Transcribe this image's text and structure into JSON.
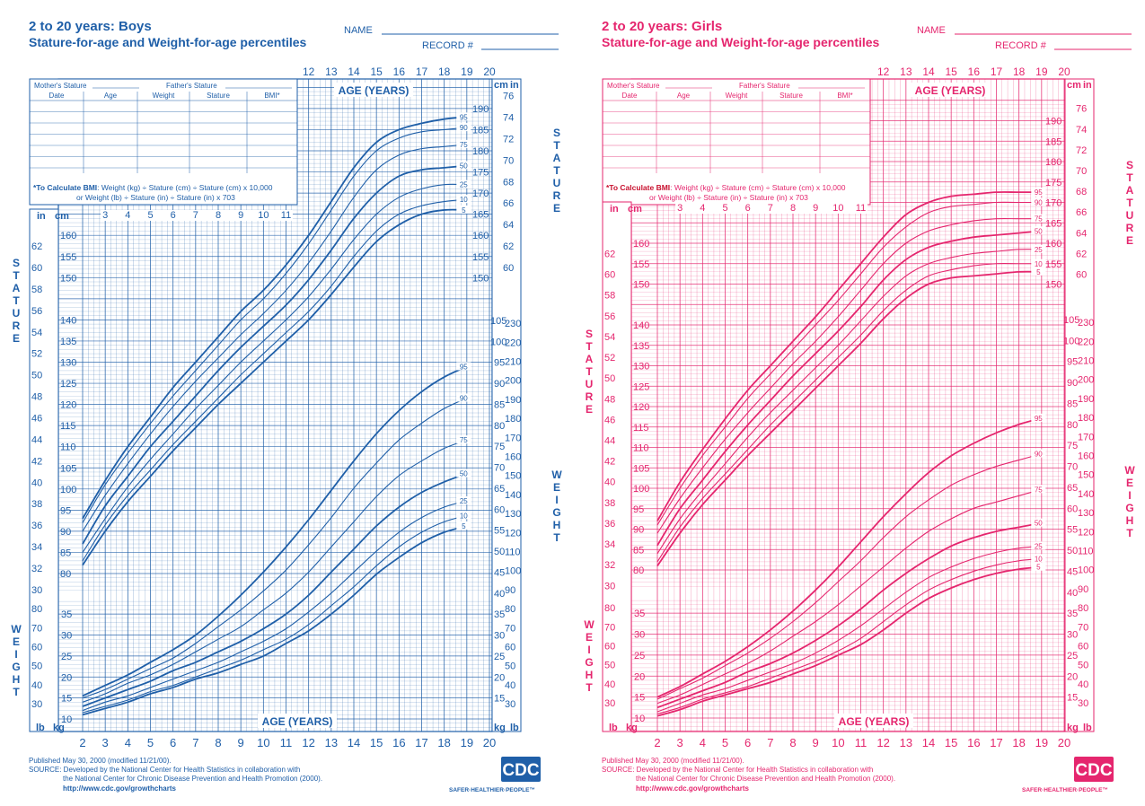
{
  "boys": {
    "title": "2 to 20 years: Boys",
    "subtitle": "Stature-for-age and Weight-for-age percentiles",
    "name_label": "NAME",
    "record_label": "RECORD #",
    "color": "#1f5fa8",
    "table": {
      "mother_label": "Mother's Stature",
      "father_label": "Father's Stature",
      "columns": [
        "Date",
        "Age",
        "Weight",
        "Stature",
        "BMI*"
      ]
    },
    "bmi_note_bold": "*To Calculate BMI",
    "bmi_note_line1": ": Weight (kg) ÷ Stature (cm) ÷ Stature (cm) x 10,000",
    "bmi_note_line2": "or Weight (lb) ÷ Stature (in) ÷ Stature (in) x 703",
    "age_label": "AGE (YEARS)",
    "stature_label": "STATURE",
    "weight_label": "WEIGHT",
    "unit_in": "in",
    "unit_cm": "cm",
    "unit_lb": "lb",
    "unit_kg": "kg",
    "footer_line1": "Published May 30, 2000 (modified 11/21/00).",
    "footer_line2": "SOURCE: Developed by the National Center for Health Statistics in collaboration with",
    "footer_line3": "the National Center for Chronic Disease Prevention and Health Promotion (2000).",
    "footer_url": "http://www.cdc.gov/growthcharts",
    "logo_text": "CDC",
    "logo_tagline": "SAFER·HEALTHIER·PEOPLE™"
  },
  "girls": {
    "title": "2 to 20 years: Girls",
    "subtitle": "Stature-for-age and Weight-for-age percentiles",
    "name_label": "NAME",
    "record_label": "RECORD #",
    "color": "#e5266e",
    "table": {
      "mother_label": "Mother's Stature",
      "father_label": "Father's Stature",
      "columns": [
        "Date",
        "Age",
        "Weight",
        "Stature",
        "BMI*"
      ]
    },
    "bmi_note_bold": "*To Calculate BMI",
    "bmi_note_line1": ": Weight (kg) ÷ Stature (cm) ÷ Stature (cm) x 10,000",
    "bmi_note_line2": "or Weight (lb) ÷ Stature (in) ÷ Stature (in) x 703",
    "age_label": "AGE (YEARS)",
    "stature_label": "STATURE",
    "weight_label": "WEIGHT",
    "unit_in": "in",
    "unit_cm": "cm",
    "unit_lb": "lb",
    "unit_kg": "kg",
    "footer_line1": "Published May 30, 2000 (modified 11/21/00).",
    "footer_line2": "SOURCE: Developed by the National Center for Health Statistics in collaboration with",
    "footer_line3": "the National Center for Chronic Disease Prevention and Health Promotion (2000).",
    "footer_url": "http://www.cdc.gov/growthcharts",
    "logo_text": "CDC",
    "logo_tagline": "SAFER·HEALTHIER·PEOPLE™"
  },
  "chart_data": [
    {
      "type": "line",
      "title": "2 to 20 years: Boys",
      "subtitle": "Stature-for-age and Weight-for-age percentiles",
      "xlabel": "AGE (YEARS)",
      "x": [
        2,
        3,
        4,
        5,
        6,
        7,
        8,
        9,
        10,
        11,
        12,
        13,
        14,
        15,
        16,
        17,
        18,
        19,
        20
      ],
      "xlim": [
        2,
        20
      ],
      "stature_ylim_cm": [
        75,
        195
      ],
      "weight_ylim_kg": [
        5,
        110
      ],
      "grid": true,
      "stature_series": [
        {
          "name": "95",
          "values_cm": [
            93,
            102,
            110,
            117,
            124,
            130,
            136,
            142,
            147,
            153,
            160,
            168,
            176,
            182,
            185,
            186.5,
            187.5,
            188,
            188.5
          ]
        },
        {
          "name": "90",
          "values_cm": [
            92,
            101,
            108.5,
            115.5,
            122,
            128,
            134,
            140,
            145,
            151,
            158,
            166,
            174,
            180,
            183,
            184.5,
            185,
            185.5,
            185.5
          ]
        },
        {
          "name": "75",
          "values_cm": [
            90,
            98.5,
            106,
            113,
            119.5,
            125.5,
            131,
            136.5,
            141.5,
            147,
            153.5,
            161,
            169,
            175.5,
            179,
            180.5,
            181,
            181.5,
            181.5
          ]
        },
        {
          "name": "50",
          "values_cm": [
            87,
            96,
            103,
            110,
            116,
            122,
            128,
            133.5,
            138.5,
            143.5,
            149.5,
            156.5,
            164,
            170,
            174,
            175.5,
            176,
            176.5,
            176.5
          ]
        },
        {
          "name": "25",
          "values_cm": [
            85,
            93,
            100.5,
            107,
            113,
            119,
            124.5,
            130,
            135,
            140,
            145.5,
            152,
            159,
            165,
            169,
            171,
            172,
            172,
            172
          ]
        },
        {
          "name": "10",
          "values_cm": [
            83,
            91.5,
            98.5,
            104.5,
            110.5,
            116,
            121.5,
            127,
            132,
            137,
            142,
            148,
            155,
            161,
            165,
            167,
            168,
            168.5,
            168.5
          ]
        },
        {
          "name": "5",
          "values_cm": [
            82,
            90,
            97,
            103,
            109,
            114.5,
            120,
            125,
            130,
            135,
            140,
            146,
            152.5,
            158.5,
            162.5,
            165,
            166,
            166,
            166
          ]
        }
      ],
      "weight_series": [
        {
          "name": "95",
          "values_kg": [
            15.5,
            18,
            20.5,
            23.5,
            26.5,
            30,
            34.5,
            39.5,
            45,
            51,
            57.5,
            64.5,
            71.5,
            78,
            83.5,
            88,
            91.5,
            94,
            96.5
          ]
        },
        {
          "name": "90",
          "values_kg": [
            15,
            17,
            19.5,
            22,
            24.5,
            28,
            32,
            36,
            40.5,
            45.5,
            51.5,
            58,
            65,
            71,
            76.5,
            80.5,
            84,
            86.5,
            88
          ]
        },
        {
          "name": "75",
          "values_kg": [
            14,
            16,
            18.5,
            20.5,
            23,
            26,
            29,
            32,
            36,
            40,
            45,
            51,
            57,
            63,
            68,
            71.5,
            74.5,
            76.5,
            78
          ]
        },
        {
          "name": "50",
          "values_kg": [
            13,
            15,
            17,
            19,
            21.5,
            23.5,
            26,
            28.5,
            31.5,
            35,
            39.5,
            45,
            50.5,
            56,
            60.5,
            64,
            66.5,
            68.5,
            70
          ]
        },
        {
          "name": "25",
          "values_kg": [
            12,
            14,
            15.5,
            17.5,
            19.5,
            21.5,
            23.5,
            26,
            28.5,
            31.5,
            35.5,
            40,
            45,
            50,
            54.5,
            58,
            60.5,
            62,
            63
          ]
        },
        {
          "name": "10",
          "values_kg": [
            11.5,
            13,
            14.5,
            16.5,
            18,
            20,
            22,
            24,
            26.5,
            29,
            32.5,
            37,
            41.5,
            46.5,
            51,
            54.5,
            57,
            58.5,
            59.5
          ]
        },
        {
          "name": "5",
          "values_kg": [
            11,
            12.5,
            14,
            16,
            17.5,
            19.5,
            21,
            23,
            25,
            28,
            31,
            35,
            39.5,
            44.5,
            48.5,
            52,
            54.5,
            56,
            57
          ]
        }
      ]
    },
    {
      "type": "line",
      "title": "2 to 20 years: Girls",
      "subtitle": "Stature-for-age and Weight-for-age percentiles",
      "xlabel": "AGE (YEARS)",
      "x": [
        2,
        3,
        4,
        5,
        6,
        7,
        8,
        9,
        10,
        11,
        12,
        13,
        14,
        15,
        16,
        17,
        18,
        19,
        20
      ],
      "xlim": [
        2,
        20
      ],
      "stature_ylim_cm": [
        75,
        195
      ],
      "weight_ylim_kg": [
        5,
        110
      ],
      "grid": true,
      "stature_series": [
        {
          "name": "95",
          "values_cm": [
            92,
            101.5,
            109.5,
            117,
            124,
            130,
            136,
            142,
            148.5,
            155,
            161.5,
            167,
            170,
            171.5,
            172,
            172.5,
            172.5,
            172.5,
            172.5
          ]
        },
        {
          "name": "90",
          "values_cm": [
            91,
            100,
            108,
            115,
            122,
            128,
            134,
            140,
            146,
            152.5,
            159,
            164,
            167.5,
            169,
            169.5,
            170,
            170,
            170,
            170
          ]
        },
        {
          "name": "75",
          "values_cm": [
            89,
            97.5,
            105,
            112,
            118.5,
            124.5,
            130.5,
            136,
            142,
            148.5,
            155,
            160,
            163,
            164.5,
            165.5,
            166,
            166,
            166,
            166
          ]
        },
        {
          "name": "50",
          "values_cm": [
            86,
            95,
            102,
            109,
            115.5,
            121.5,
            127.5,
            133,
            138.5,
            144.5,
            151,
            156,
            159,
            160.5,
            161.5,
            162,
            162.5,
            163,
            163
          ]
        },
        {
          "name": "25",
          "values_cm": [
            84,
            92.5,
            99.5,
            106,
            112.5,
            118.5,
            124,
            129.5,
            135,
            141,
            147,
            152,
            155,
            156.5,
            157.5,
            158,
            158.5,
            158.5,
            159
          ]
        },
        {
          "name": "10",
          "values_cm": [
            82,
            90.5,
            97.5,
            103.5,
            109.5,
            115.5,
            121,
            126.5,
            132,
            137.5,
            143.5,
            148.5,
            152,
            153.5,
            154.5,
            155,
            155,
            155,
            155.5
          ]
        },
        {
          "name": "5",
          "values_cm": [
            81,
            89,
            96,
            102,
            108,
            113.5,
            119,
            124.5,
            130,
            135.5,
            141.5,
            146.5,
            150,
            151.5,
            152,
            152.5,
            153,
            153,
            153
          ]
        }
      ],
      "weight_series": [
        {
          "name": "95",
          "values_kg": [
            15,
            17.5,
            20.5,
            23.5,
            27,
            31,
            35.5,
            40.5,
            46,
            52,
            58,
            63.5,
            68.5,
            72.5,
            75.5,
            78,
            80,
            81.5,
            83
          ]
        },
        {
          "name": "90",
          "values_kg": [
            14.5,
            17,
            19.5,
            22.5,
            25.5,
            29,
            33,
            37.5,
            42.5,
            47.5,
            53,
            58,
            62,
            65.5,
            68,
            70,
            71.5,
            73,
            74
          ]
        },
        {
          "name": "75",
          "values_kg": [
            13.5,
            15.5,
            18,
            20.5,
            23,
            26,
            29.5,
            33,
            37,
            41.5,
            46,
            50.5,
            54.5,
            57.5,
            60,
            61.5,
            63,
            64.5,
            65.5
          ]
        },
        {
          "name": "50",
          "values_kg": [
            12.5,
            14.5,
            16.5,
            18.5,
            21,
            23,
            25.5,
            28.5,
            32,
            36,
            40.5,
            44.5,
            48,
            51,
            53,
            54.5,
            55.5,
            56.5,
            57
          ]
        },
        {
          "name": "25",
          "values_kg": [
            11.5,
            13.5,
            15.5,
            17,
            19,
            21,
            23,
            25.5,
            28.5,
            32,
            36,
            40,
            43.5,
            46,
            48,
            49.5,
            50.5,
            51,
            51.5
          ]
        },
        {
          "name": "10",
          "values_kg": [
            11,
            12.5,
            14.5,
            16,
            17.5,
            19.5,
            21.5,
            23.5,
            26,
            29,
            33,
            37,
            40.5,
            43,
            45,
            46.5,
            47.5,
            48,
            48.5
          ]
        },
        {
          "name": "5",
          "values_kg": [
            10.5,
            12,
            14,
            15.5,
            17,
            18.5,
            20.5,
            22.5,
            25,
            27.5,
            31,
            35,
            38.5,
            41,
            43,
            44.5,
            45.5,
            46,
            46.5
          ]
        }
      ]
    }
  ]
}
